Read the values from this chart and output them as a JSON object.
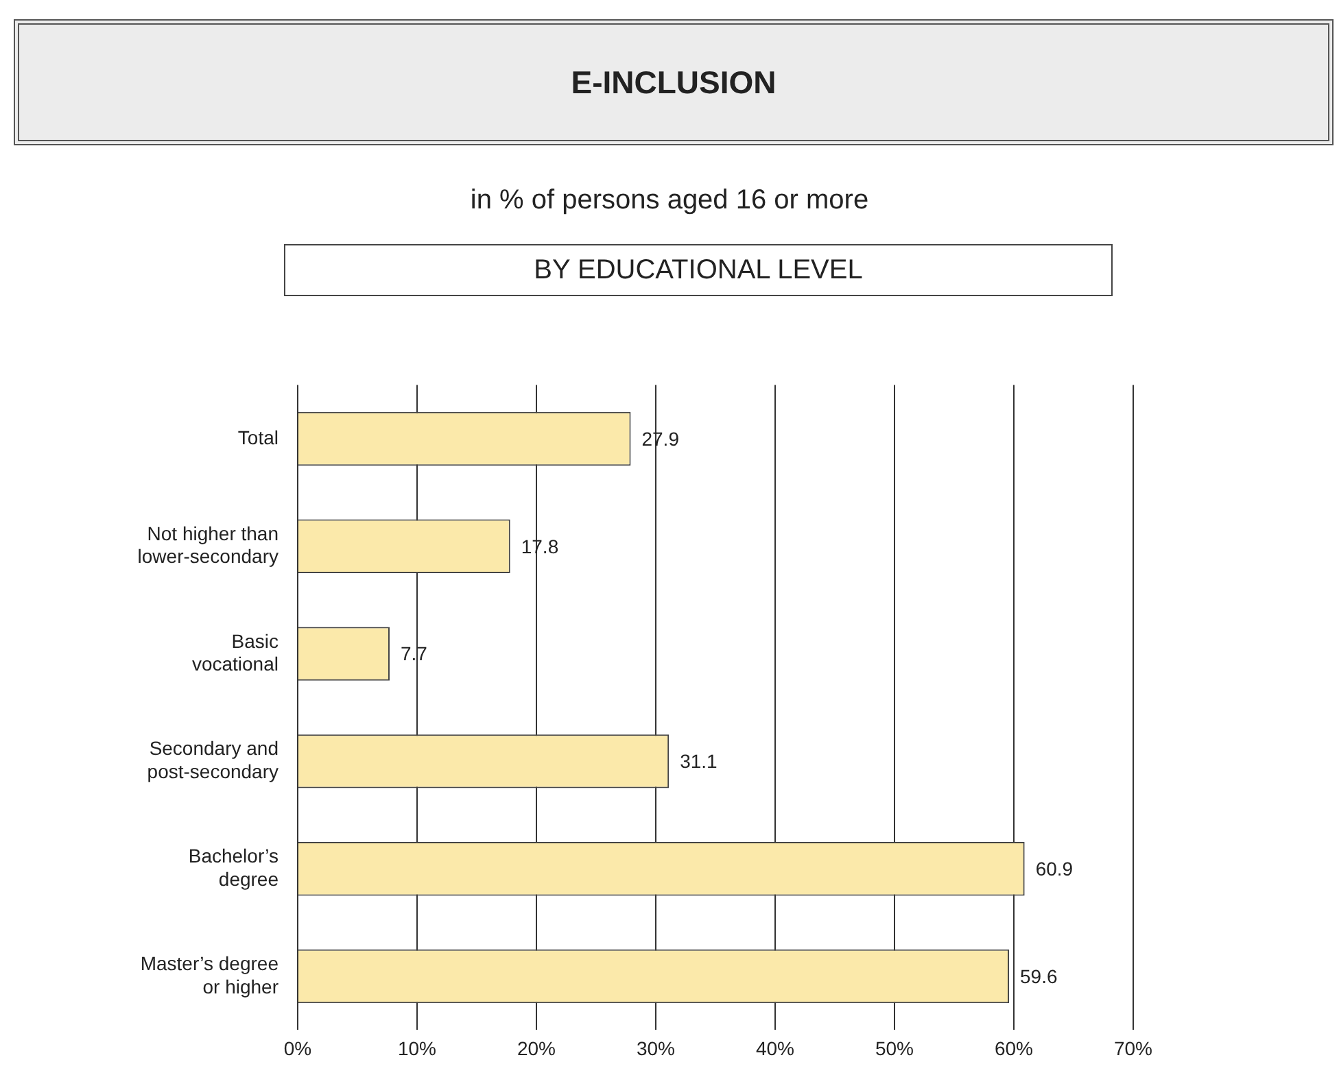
{
  "chart_data": {
    "type": "bar",
    "orientation": "horizontal",
    "title": "E-INCLUSION",
    "subtitle": "in % of persons aged 16 or more",
    "annotations": [
      "BY EDUCATIONAL LEVEL"
    ],
    "categories": [
      "Total",
      "Not higher than lower-secondary",
      "Basic vocational",
      "Secondary and post-secondary",
      "Bachelor’s degree",
      "Master’s degree or higher"
    ],
    "values": [
      27.9,
      17.8,
      7.7,
      31.1,
      60.9,
      59.6
    ],
    "color": "#fbe9aa",
    "xlim": [
      0,
      70
    ],
    "xticks": [
      {
        "value": 0,
        "label": "0%"
      },
      {
        "value": 10,
        "label": "10%"
      },
      {
        "value": 20,
        "label": "20%"
      },
      {
        "value": 30,
        "label": "30%"
      },
      {
        "value": 40,
        "label": "40%"
      },
      {
        "value": 50,
        "label": "50%"
      },
      {
        "value": 60,
        "label": "60%"
      },
      {
        "value": 70,
        "label": "70%"
      }
    ],
    "grid": "x",
    "legend": false,
    "data_labels": true
  }
}
